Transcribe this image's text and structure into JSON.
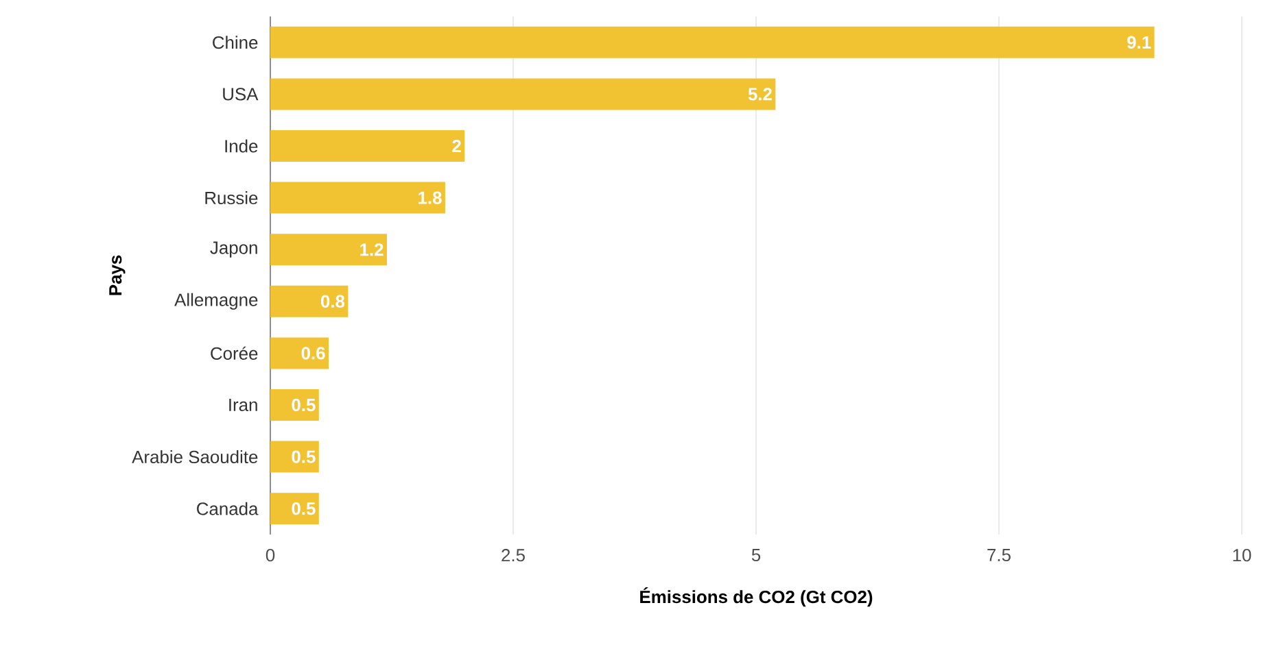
{
  "chart_data": {
    "type": "bar",
    "orientation": "horizontal",
    "xlabel": "Émissions de CO2 (Gt CO2)",
    "ylabel": "Pays",
    "categories": [
      "Chine",
      "USA",
      "Inde",
      "Russie",
      "Japon",
      "Allemagne",
      "Corée",
      "Iran",
      "Arabie Saoudite",
      "Canada"
    ],
    "values": [
      9.1,
      5.2,
      2,
      1.8,
      1.2,
      0.8,
      0.6,
      0.5,
      0.5,
      0.5
    ],
    "color": "#f1c232",
    "xlim": [
      0,
      10
    ],
    "xticks": [
      0,
      2.5,
      5,
      7.5,
      10
    ],
    "grid": "x",
    "data_labels": true
  }
}
